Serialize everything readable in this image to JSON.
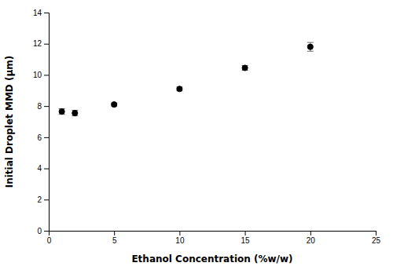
{
  "chart_data": {
    "type": "scatter",
    "xlabel": "Ethanol Concentration (%w/w)",
    "ylabel": "Initial Droplet MMD (μm)",
    "x": [
      1,
      2,
      5,
      10,
      15,
      20
    ],
    "values": [
      7.65,
      7.55,
      8.1,
      9.1,
      10.45,
      11.8
    ],
    "yerr_lower": [
      0.18,
      0.18,
      0.1,
      0.12,
      0.15,
      0.28
    ],
    "yerr_upper": [
      0.18,
      0.18,
      0.1,
      0.12,
      0.15,
      0.28
    ],
    "xlim": [
      0,
      25
    ],
    "ylim": [
      0,
      14
    ],
    "xticks": [
      0,
      5,
      10,
      15,
      20,
      25
    ],
    "yticks": [
      0,
      2,
      4,
      6,
      8,
      10,
      12,
      14
    ],
    "color": "black",
    "marker": "circle"
  }
}
